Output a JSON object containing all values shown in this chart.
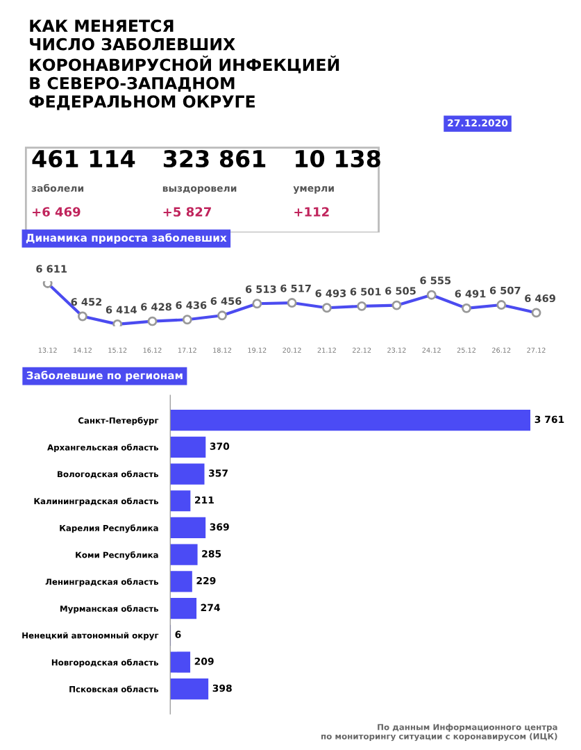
{
  "chart_data": [
    {
      "type": "other",
      "title": "КАК МЕНЯЕТСЯ\nЧИСЛО ЗАБОЛЕВШИХ\nКОРОНАВИРУСНОЙ ИНФЕКЦИЕЙ\nВ СЕВЕРО-ЗАПАДНОМ\nФЕДЕРАЛЬНОМ ОКРУГЕ",
      "annotations": [
        "27.12.2020",
        "461 114",
        "заболели",
        "+6 469",
        "323 861",
        "выздоровели",
        "+5 827",
        "10 138",
        "умерли",
        "+112"
      ]
    },
    {
      "type": "line",
      "title": "Динамика прироста заболевших",
      "color": "#4b4bf0",
      "marker": "circle",
      "categories": [
        "13.12",
        "14.12",
        "15.12",
        "16.12",
        "17.12",
        "18.12",
        "19.12",
        "20.12",
        "21.12",
        "22.12",
        "23.12",
        "24.12",
        "25.12",
        "26.12",
        "27.12"
      ],
      "values": [
        6611,
        6452,
        6414,
        6428,
        6436,
        6456,
        6513,
        6517,
        6493,
        6501,
        6505,
        6555,
        6491,
        6507,
        6469
      ],
      "value_labels": [
        "6 611",
        "6 452",
        "6 414",
        "6 428",
        "6 436",
        "6 456",
        "6 513",
        "6 517",
        "6 493",
        "6 501",
        "6 505",
        "6 555",
        "6 491",
        "6 507",
        "6 469"
      ]
    },
    {
      "type": "bar",
      "orientation": "horizontal",
      "title": "Заболевшие по регионам",
      "color": "#4b4bf5",
      "categories": [
        "Санкт-Петербург",
        "Архангельская область",
        "Вологодская область",
        "Калининградская область",
        "Карелия Республика",
        "Коми Республика",
        "Ленинградская область",
        "Мурманская область",
        "Ненецкий автономный округ",
        "Новгородская область",
        "Псковская область"
      ],
      "values": [
        3761,
        370,
        357,
        211,
        369,
        285,
        229,
        274,
        6,
        209,
        398
      ],
      "value_labels": [
        "3 761",
        "370",
        "357",
        "211",
        "369",
        "285",
        "229",
        "274",
        "6",
        "209",
        "398"
      ],
      "annotations": [
        "По данным Информационного центра\nпо мониторингу ситуации с коронавирусом (ИЦК)"
      ]
    }
  ]
}
